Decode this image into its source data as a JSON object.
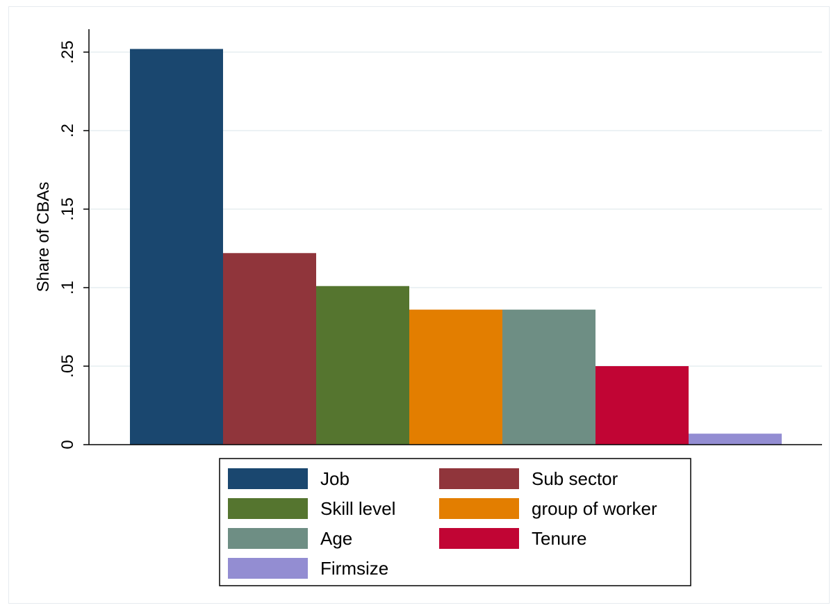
{
  "chart_data": {
    "type": "bar",
    "title": "",
    "xlabel": "",
    "ylabel": "Share of CBAs",
    "ylim": [
      0,
      0.26
    ],
    "yticks": [
      {
        "value": 0,
        "label": "0"
      },
      {
        "value": 0.05,
        "label": ".05"
      },
      {
        "value": 0.1,
        "label": ".1"
      },
      {
        "value": 0.15,
        "label": ".15"
      },
      {
        "value": 0.2,
        "label": ".2"
      },
      {
        "value": 0.25,
        "label": ".25"
      }
    ],
    "grid": true,
    "legend_position": "bottom",
    "series": [
      {
        "name": "Job",
        "value": 0.252,
        "color": "#1a476f"
      },
      {
        "name": "Sub sector",
        "value": 0.122,
        "color": "#90353b"
      },
      {
        "name": "Skill level",
        "value": 0.101,
        "color": "#55752f"
      },
      {
        "name": "group of worker",
        "value": 0.086,
        "color": "#e37e00"
      },
      {
        "name": "Age",
        "value": 0.086,
        "color": "#6e8e84"
      },
      {
        "name": "Tenure",
        "value": 0.05,
        "color": "#c10534"
      },
      {
        "name": "Firmsize",
        "value": 0.007,
        "color": "#938dd2"
      }
    ]
  }
}
